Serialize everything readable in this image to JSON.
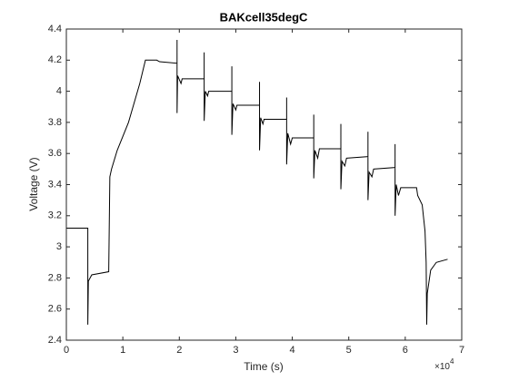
{
  "chart_data": {
    "type": "line",
    "title": "BAKcell35degC",
    "xlabel": "Time (s)",
    "ylabel": "Voltage (V)",
    "x_multiplier": {
      "base": "×10",
      "exponent": "4"
    },
    "x": [
      0,
      0.38,
      0.38,
      0.39,
      0.45,
      0.75,
      0.77,
      0.8,
      0.9,
      1.1,
      1.3,
      1.4,
      1.6,
      1.65,
      1.96,
      1.96,
      1.96,
      1.97,
      2.03,
      2.05,
      2.44,
      2.44,
      2.44,
      2.46,
      2.5,
      2.52,
      2.93,
      2.93,
      2.93,
      2.95,
      3.0,
      3.02,
      3.42,
      3.42,
      3.42,
      3.44,
      3.48,
      3.5,
      3.9,
      3.9,
      3.9,
      3.92,
      3.97,
      4.0,
      4.38,
      4.38,
      4.38,
      4.4,
      4.45,
      4.48,
      4.86,
      4.86,
      4.86,
      4.88,
      4.93,
      4.96,
      5.34,
      5.34,
      5.34,
      5.36,
      5.41,
      5.44,
      5.82,
      5.82,
      5.82,
      5.84,
      5.88,
      5.92,
      6.2,
      6.22,
      6.3,
      6.35,
      6.37,
      6.38,
      6.39,
      6.45,
      6.55,
      6.75
    ],
    "values": [
      3.12,
      3.12,
      2.5,
      2.78,
      2.82,
      2.84,
      3.45,
      3.5,
      3.62,
      3.8,
      4.05,
      4.2,
      4.2,
      4.19,
      4.18,
      4.33,
      3.86,
      4.1,
      4.05,
      4.08,
      4.08,
      4.25,
      3.81,
      4.0,
      3.97,
      4.0,
      4.0,
      4.16,
      3.72,
      3.92,
      3.88,
      3.91,
      3.91,
      4.06,
      3.62,
      3.83,
      3.79,
      3.82,
      3.82,
      3.96,
      3.53,
      3.73,
      3.66,
      3.7,
      3.7,
      3.85,
      3.44,
      3.62,
      3.57,
      3.63,
      3.63,
      3.79,
      3.37,
      3.55,
      3.52,
      3.57,
      3.58,
      3.74,
      3.3,
      3.48,
      3.45,
      3.5,
      3.51,
      3.66,
      3.2,
      3.4,
      3.33,
      3.38,
      3.38,
      3.33,
      3.27,
      3.1,
      2.9,
      2.5,
      2.7,
      2.85,
      2.9,
      2.92
    ],
    "color": "#000000",
    "xlim": [
      0,
      7
    ],
    "xticks": [
      0,
      1,
      2,
      3,
      4,
      5,
      6,
      7
    ],
    "ylim": [
      2.4,
      4.4
    ],
    "yticks": [
      2.4,
      2.6,
      2.8,
      3,
      3.2,
      3.4,
      3.6,
      3.8,
      4,
      4.2,
      4.4
    ],
    "grid": false
  }
}
